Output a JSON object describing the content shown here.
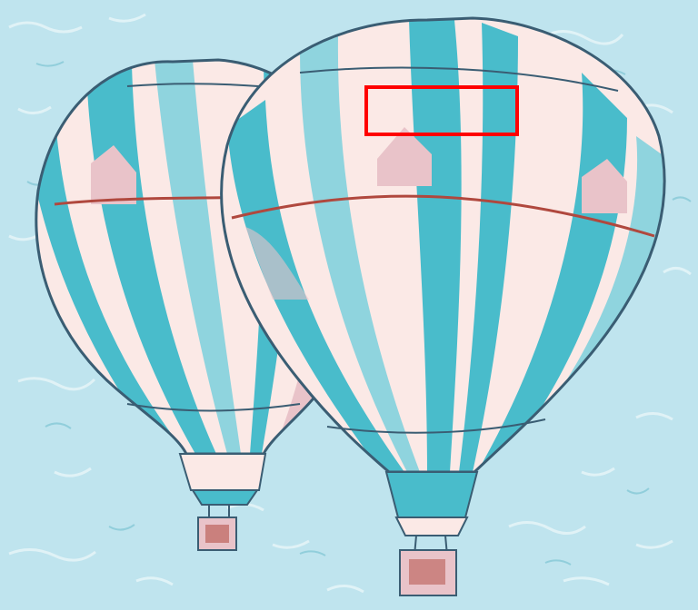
{
  "image": {
    "subject": "two-striped-hot-air-balloons",
    "style": "painted-filter",
    "palette": {
      "sky": "#bfe4ee",
      "sky_streak": "#e9f6f9",
      "cream": "#fbe9e6",
      "pink_shade": "#e9c3c9",
      "teal": "#49bccb",
      "teal_light": "#8fd4de",
      "outline": "#3a5d73",
      "red_seam": "#b0483e",
      "annotation": "#ff0000"
    }
  },
  "annotation": {
    "shape": "rectangle",
    "color": "#ff0000"
  }
}
